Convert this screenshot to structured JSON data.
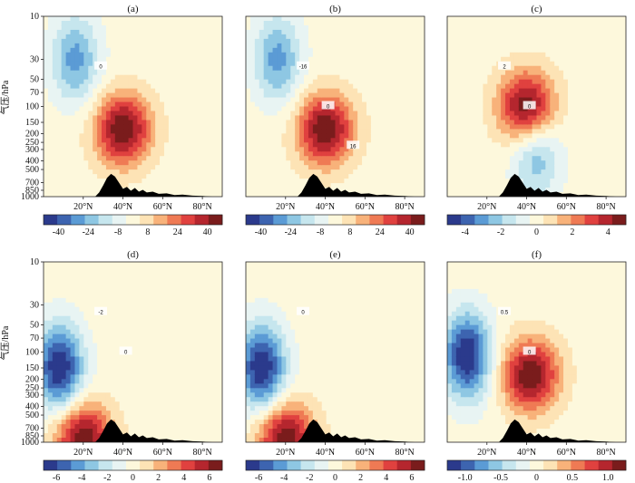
{
  "chart_data": [
    {
      "type": "heatmap",
      "title": "(a)",
      "ylabel": "气压/hPa",
      "x_ticks": [
        "20°N",
        "40°N",
        "60°N",
        "80°N"
      ],
      "y_ticks": [
        "10",
        "30",
        "50",
        "70",
        "100",
        "150",
        "200",
        "250",
        "300",
        "400",
        "500",
        "700",
        "850",
        "1000"
      ],
      "colorbar_ticks": [
        "-40",
        "-24",
        "-8",
        "8",
        "24",
        "40"
      ],
      "contour_labels": [
        "0"
      ],
      "field": {
        "max_center": [
          40,
          180
        ],
        "max_value": 40,
        "min_center": [
          16,
          30
        ],
        "min_value": -24
      }
    },
    {
      "type": "heatmap",
      "title": "(b)",
      "x_ticks": [
        "20°N",
        "40°N",
        "60°N",
        "80°N"
      ],
      "colorbar_ticks": [
        "-40",
        "-24",
        "-8",
        "8",
        "24",
        "40"
      ],
      "contour_labels": [
        "-16",
        "0",
        "16"
      ],
      "field": {
        "max_center": [
          40,
          180
        ],
        "max_value": 40,
        "min_center": [
          16,
          30
        ],
        "min_value": -24
      }
    },
    {
      "type": "heatmap",
      "title": "(c)",
      "x_ticks": [
        "20°N",
        "40°N",
        "60°N",
        "80°N"
      ],
      "colorbar_ticks": [
        "-4",
        "-2",
        "0",
        "2",
        "4"
      ],
      "contour_labels": [
        "2",
        "0"
      ],
      "field": {
        "max_center": [
          40,
          100
        ],
        "max_value": 4,
        "min_center": [
          45,
          350
        ],
        "min_value": -2
      }
    },
    {
      "type": "heatmap",
      "title": "(d)",
      "ylabel": "气压/hPa",
      "x_ticks": [
        "20°N",
        "40°N",
        "60°N",
        "80°N"
      ],
      "y_ticks": [
        "10",
        "30",
        "50",
        "70",
        "100",
        "150",
        "200",
        "250",
        "300",
        "400",
        "500",
        "700",
        "850",
        "1000"
      ],
      "colorbar_ticks": [
        "-6",
        "-4",
        "-2",
        "0",
        "2",
        "4",
        "6"
      ],
      "contour_labels": [
        "-2",
        "0"
      ],
      "field": {
        "max_center": [
          20,
          900
        ],
        "max_value": 6,
        "min_center": [
          8,
          150
        ],
        "min_value": -6
      }
    },
    {
      "type": "heatmap",
      "title": "(e)",
      "x_ticks": [
        "20°N",
        "40°N",
        "60°N",
        "80°N"
      ],
      "colorbar_ticks": [
        "-6",
        "-4",
        "-2",
        "0",
        "2",
        "4",
        "6"
      ],
      "contour_labels": [
        "0"
      ],
      "field": {
        "max_center": [
          20,
          900
        ],
        "max_value": 6,
        "min_center": [
          8,
          150
        ],
        "min_value": -6
      }
    },
    {
      "type": "heatmap",
      "title": "(f)",
      "x_ticks": [
        "20°N",
        "40°N",
        "60°N",
        "80°N"
      ],
      "colorbar_ticks": [
        "-1.0",
        "-0.5",
        "0",
        "0.5",
        "1.0"
      ],
      "contour_labels": [
        "0.5",
        "0"
      ],
      "field": {
        "max_center": [
          42,
          180
        ],
        "max_value": 1.0,
        "min_center": [
          10,
          110
        ],
        "min_value": -1.0
      }
    }
  ],
  "colors": {
    "scale": [
      "#2b3a8c",
      "#3d64b0",
      "#5b9bd5",
      "#8ec7e3",
      "#c6e6ee",
      "#e8f4f3",
      "#fdf8dc",
      "#fde3b5",
      "#f8b27a",
      "#ef7a54",
      "#e0413f",
      "#b5262e",
      "#7a1c1c"
    ],
    "terrain": "#000000"
  }
}
